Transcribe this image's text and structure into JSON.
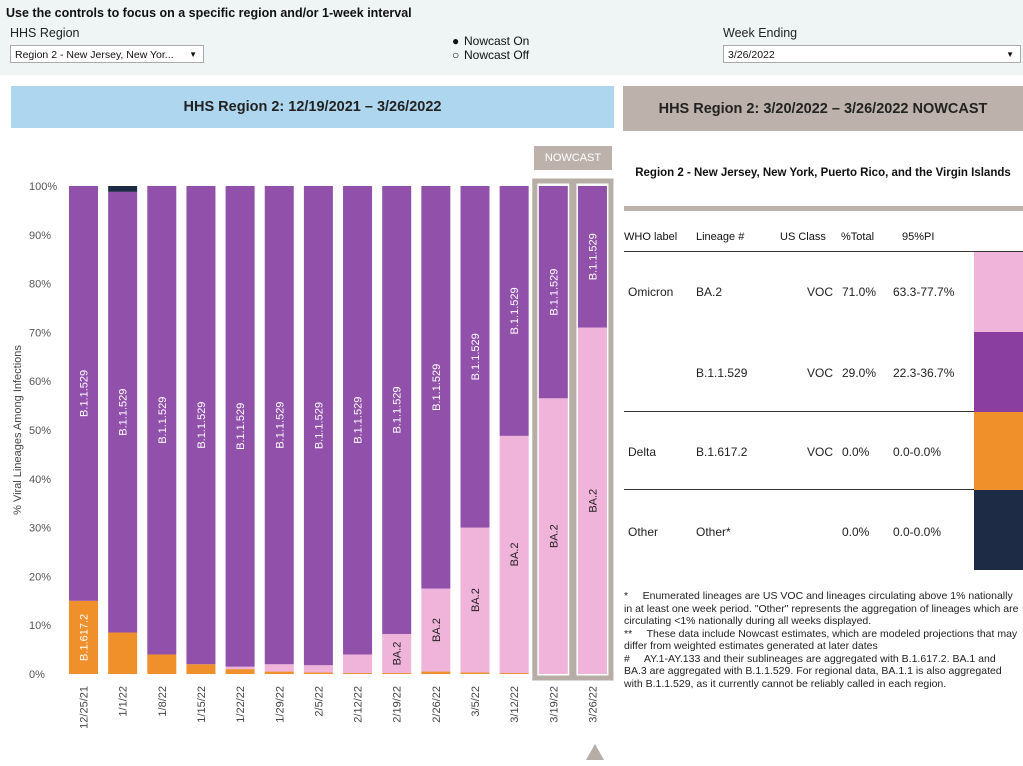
{
  "controls": {
    "title": "Use the controls to focus on a specific region and/or 1-week interval",
    "region_label": "HHS Region",
    "region_value": "Region 2 - New Jersey, New Yor...",
    "nowcast_on": "Nowcast On",
    "nowcast_off": "Nowcast Off",
    "week_label": "Week Ending",
    "week_value": "3/26/2022"
  },
  "left_banner": {
    "title": "HHS Region 2: 12/19/2021 – 3/26/2022",
    "bg": "#aed6ee"
  },
  "right_banner": {
    "title": "HHS Region 2: 3/20/2022 – 3/26/2022 NOWCAST",
    "bg": "#bcb2ab"
  },
  "nowcast_tag": "NOWCAST",
  "table": {
    "region_title": "Region 2 - New Jersey, New York, Puerto Rico, and the Virgin Islands",
    "headers": {
      "who": "WHO label",
      "lineage": "Lineage #",
      "us_class": "US Class",
      "pct": "%Total",
      "pi": "95%PI"
    },
    "rows": [
      {
        "who": "Omicron",
        "lineage": "BA.2",
        "us_class": "VOC",
        "pct": "71.0%",
        "pi": "63.3-77.7%",
        "color": "#f0b3d9"
      },
      {
        "who": "",
        "lineage": "B.1.1.529",
        "us_class": "VOC",
        "pct": "29.0%",
        "pi": "22.3-36.7%",
        "color": "#8a3fa0"
      },
      {
        "who": "Delta",
        "lineage": "B.1.617.2",
        "us_class": "VOC",
        "pct": "0.0%",
        "pi": "0.0-0.0%",
        "color": "#f0902a"
      },
      {
        "who": "Other",
        "lineage": "Other*",
        "us_class": "",
        "pct": "0.0%",
        "pi": "0.0-0.0%",
        "color": "#1d2b45"
      }
    ]
  },
  "footnotes": {
    "f1": "*     Enumerated lineages are US VOC and lineages circulating above 1% nationally in at least one week period. \"Other\" represents the aggregation of lineages which are circulating <1% nationally during all weeks displayed.",
    "f2": "**     These data include Nowcast estimates, which are modeled projections that may differ from weighted estimates generated at later dates",
    "f3": "#     AY.1-AY.133 and their sublineages are aggregated with B.1.617.2. BA.1 and BA.3 are aggregated with B.1.1.529. For regional data, BA.1.1 is also aggregated with B.1.1.529, as it currently cannot be reliably called in each region."
  },
  "chart_data": {
    "type": "bar",
    "stacked": true,
    "ylabel": "% Viral Lineages Among Infections",
    "ylim": [
      0,
      100
    ],
    "yticks": [
      "0%",
      "10%",
      "20%",
      "30%",
      "40%",
      "50%",
      "60%",
      "70%",
      "80%",
      "90%",
      "100%"
    ],
    "categories": [
      "12/25/21",
      "1/1/22",
      "1/8/22",
      "1/15/22",
      "1/22/22",
      "1/29/22",
      "2/5/22",
      "2/12/22",
      "2/19/22",
      "2/26/22",
      "3/5/22",
      "3/12/22",
      "3/19/22",
      "3/26/22"
    ],
    "nowcast_categories": [
      "3/19/22",
      "3/26/22"
    ],
    "series": [
      {
        "name": "B.1.617.2",
        "color": "#f0902a",
        "values": [
          15.0,
          8.5,
          4.0,
          2.0,
          1.0,
          0.5,
          0.3,
          0.2,
          0.2,
          0.5,
          0.3,
          0.2,
          0.0,
          0.0
        ]
      },
      {
        "name": "BA.2",
        "color": "#f0b3d9",
        "values": [
          0.0,
          0.0,
          0.0,
          0.0,
          0.5,
          1.5,
          1.5,
          3.8,
          8.0,
          17.0,
          29.7,
          48.6,
          56.5,
          71.0
        ]
      },
      {
        "name": "B.1.1.529",
        "color": "#9150aa",
        "values": [
          85.0,
          90.3,
          96.0,
          98.0,
          98.5,
          98.0,
          98.2,
          96.0,
          91.8,
          82.5,
          70.0,
          51.2,
          43.5,
          29.0
        ]
      },
      {
        "name": "Other",
        "color": "#1d2b45",
        "values": [
          0.0,
          1.2,
          0.0,
          0.0,
          0.0,
          0.0,
          0.0,
          0.0,
          0.0,
          0.0,
          0.0,
          0.0,
          0.0,
          0.0
        ]
      }
    ],
    "bar_labels": [
      {
        "category": "12/25/21",
        "series": "B.1.617.2",
        "text": "B.1.617.2"
      },
      {
        "category": "12/25/21",
        "series": "B.1.1.529",
        "text": "B.1.1.529"
      },
      {
        "category": "1/1/22",
        "series": "B.1.1.529",
        "text": "B.1.1.529"
      },
      {
        "category": "1/8/22",
        "series": "B.1.1.529",
        "text": "B.1.1.529"
      },
      {
        "category": "1/15/22",
        "series": "B.1.1.529",
        "text": "B.1.1.529"
      },
      {
        "category": "1/22/22",
        "series": "B.1.1.529",
        "text": "B.1.1.529"
      },
      {
        "category": "1/29/22",
        "series": "B.1.1.529",
        "text": "B.1.1.529"
      },
      {
        "category": "2/5/22",
        "series": "B.1.1.529",
        "text": "B.1.1.529"
      },
      {
        "category": "2/12/22",
        "series": "B.1.1.529",
        "text": "B.1.1.529"
      },
      {
        "category": "2/19/22",
        "series": "BA.2",
        "text": "BA.2"
      },
      {
        "category": "2/19/22",
        "series": "B.1.1.529",
        "text": "B.1.1.529"
      },
      {
        "category": "2/26/22",
        "series": "BA.2",
        "text": "BA.2"
      },
      {
        "category": "2/26/22",
        "series": "B.1.1.529",
        "text": "B.1.1.529"
      },
      {
        "category": "3/5/22",
        "series": "BA.2",
        "text": "BA.2"
      },
      {
        "category": "3/5/22",
        "series": "B.1.1.529",
        "text": "B.1.1.529"
      },
      {
        "category": "3/12/22",
        "series": "BA.2",
        "text": "BA.2"
      },
      {
        "category": "3/12/22",
        "series": "B.1.1.529",
        "text": "B.1.1.529"
      },
      {
        "category": "3/19/22",
        "series": "BA.2",
        "text": "BA.2"
      },
      {
        "category": "3/19/22",
        "series": "B.1.1.529",
        "text": "B.1.1.529"
      },
      {
        "category": "3/26/22",
        "series": "BA.2",
        "text": "BA.2"
      },
      {
        "category": "3/26/22",
        "series": "B.1.1.529",
        "text": "B.1.1.529"
      }
    ],
    "grid": false,
    "legend": "none"
  }
}
